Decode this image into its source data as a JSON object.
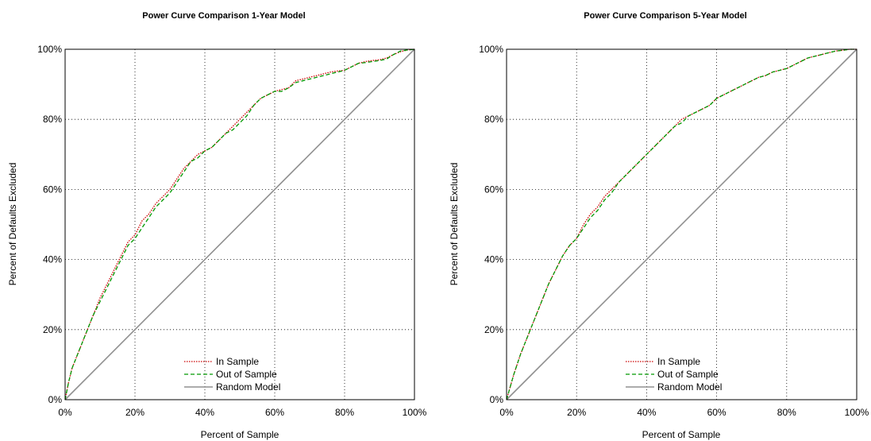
{
  "chart_data": [
    {
      "type": "line",
      "title": "Power Curve Comparison 1-Year Model",
      "xlabel": "Percent of Sample",
      "ylabel": "Percent of Defaults Excluded",
      "xlim": [
        0,
        100
      ],
      "ylim": [
        0,
        100
      ],
      "x_ticks": [
        "0%",
        "20%",
        "40%",
        "60%",
        "80%",
        "100%"
      ],
      "y_ticks": [
        "0%",
        "20%",
        "40%",
        "60%",
        "80%",
        "100%"
      ],
      "grid": true,
      "legend": "bottom-center",
      "series": [
        {
          "name": "In Sample",
          "color": "#cc0000",
          "dash": "dotted",
          "x": [
            0,
            1,
            2,
            4,
            6,
            8,
            10,
            12,
            14,
            16,
            18,
            20,
            22,
            24,
            26,
            28,
            30,
            32,
            34,
            36,
            38,
            40,
            42,
            44,
            46,
            48,
            50,
            52,
            54,
            56,
            58,
            60,
            62,
            64,
            66,
            68,
            70,
            72,
            74,
            76,
            78,
            80,
            82,
            84,
            86,
            88,
            90,
            92,
            94,
            96,
            98,
            100
          ],
          "y": [
            0,
            5,
            9,
            14,
            19,
            24,
            29,
            33,
            37,
            41,
            45,
            47,
            51,
            53,
            56,
            58,
            60,
            63,
            66,
            68,
            70,
            71,
            72,
            74,
            76,
            78,
            80,
            82,
            84,
            86,
            87,
            88,
            88.5,
            89,
            91,
            91.5,
            92,
            92.5,
            93,
            93.5,
            93.8,
            94,
            95,
            96,
            96.5,
            96.8,
            97,
            97.5,
            98.5,
            99.3,
            99.8,
            100
          ]
        },
        {
          "name": "Out of Sample",
          "color": "#009900",
          "dash": "dashed",
          "x": [
            0,
            1,
            2,
            4,
            6,
            8,
            10,
            12,
            14,
            16,
            18,
            20,
            22,
            24,
            26,
            28,
            30,
            32,
            34,
            36,
            38,
            40,
            42,
            44,
            46,
            48,
            50,
            52,
            54,
            56,
            58,
            60,
            62,
            64,
            66,
            68,
            70,
            72,
            74,
            76,
            78,
            80,
            82,
            84,
            86,
            88,
            90,
            92,
            94,
            96,
            98,
            100
          ],
          "y": [
            0,
            5,
            9,
            14,
            19,
            24,
            28,
            32,
            36,
            40,
            44,
            46,
            49,
            52,
            55,
            57,
            59,
            62,
            65,
            68,
            69,
            71,
            72,
            74,
            76,
            77,
            79,
            81,
            84,
            86,
            87,
            88,
            88,
            89,
            90.5,
            91,
            91.5,
            92,
            92.5,
            93,
            93.5,
            94,
            95,
            96,
            96.2,
            96.5,
            96.8,
            97.2,
            98.5,
            99.5,
            99.8,
            100
          ]
        },
        {
          "name": "Random Model",
          "color": "#909090",
          "dash": "solid",
          "x": [
            0,
            100
          ],
          "y": [
            0,
            100
          ]
        }
      ]
    },
    {
      "type": "line",
      "title": "Power Curve Comparison 5-Year Model",
      "xlabel": "Percent of Sample",
      "ylabel": "Percent of Defaults Excluded",
      "xlim": [
        0,
        100
      ],
      "ylim": [
        0,
        100
      ],
      "x_ticks": [
        "0%",
        "20%",
        "40%",
        "60%",
        "80%",
        "100%"
      ],
      "y_ticks": [
        "0%",
        "20%",
        "40%",
        "60%",
        "80%",
        "100%"
      ],
      "grid": true,
      "legend": "bottom-center",
      "series": [
        {
          "name": "In Sample",
          "color": "#cc0000",
          "dash": "dotted",
          "x": [
            0,
            1,
            2,
            4,
            6,
            8,
            10,
            12,
            14,
            16,
            18,
            20,
            22,
            24,
            26,
            28,
            30,
            32,
            34,
            36,
            38,
            40,
            42,
            44,
            46,
            48,
            50,
            52,
            54,
            56,
            58,
            60,
            62,
            64,
            66,
            68,
            70,
            72,
            74,
            76,
            78,
            80,
            82,
            84,
            86,
            88,
            90,
            92,
            94,
            96,
            98,
            100
          ],
          "y": [
            0,
            3.5,
            7,
            13,
            18,
            23,
            28,
            33,
            37,
            41,
            44,
            46,
            50,
            53,
            55,
            58,
            60,
            62,
            64,
            66,
            68,
            70,
            72,
            74,
            76,
            78,
            80,
            81,
            82,
            83,
            84,
            86,
            87,
            88,
            89,
            90,
            91,
            92,
            92.5,
            93.5,
            94,
            94.5,
            95.5,
            96.5,
            97.5,
            98,
            98.5,
            99,
            99.5,
            99.7,
            100,
            100
          ]
        },
        {
          "name": "Out of Sample",
          "color": "#009900",
          "dash": "dashed",
          "x": [
            0,
            1,
            2,
            4,
            6,
            8,
            10,
            12,
            14,
            16,
            18,
            20,
            22,
            24,
            26,
            28,
            30,
            32,
            34,
            36,
            38,
            40,
            42,
            44,
            46,
            48,
            50,
            52,
            54,
            56,
            58,
            60,
            62,
            64,
            66,
            68,
            70,
            72,
            74,
            76,
            78,
            80,
            82,
            84,
            86,
            88,
            90,
            92,
            94,
            96,
            98,
            100
          ],
          "y": [
            0,
            3.5,
            7,
            13,
            18,
            23,
            28,
            33,
            37,
            41,
            44,
            46,
            49,
            52,
            54,
            57,
            59,
            62,
            64,
            66,
            68,
            70,
            72,
            74,
            76,
            78,
            79,
            81,
            82,
            83,
            84,
            86,
            87,
            88,
            89,
            90,
            91,
            92,
            92.5,
            93.5,
            94,
            94.5,
            95.5,
            96.5,
            97.5,
            98,
            98.5,
            99,
            99.5,
            99.7,
            100,
            100
          ]
        },
        {
          "name": "Random Model",
          "color": "#909090",
          "dash": "solid",
          "x": [
            0,
            100
          ],
          "y": [
            0,
            100
          ]
        }
      ]
    }
  ]
}
